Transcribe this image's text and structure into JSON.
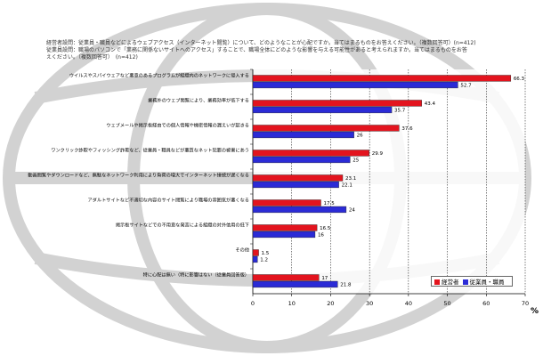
{
  "header": {
    "line1": "経営者設問：従業員・職員などによるウェブアクセス（インターネット閲覧）について、どのようなことが心配ですか。当てはまるものをお答えください。（複数回答可）(n=412)",
    "line2": "従業員設問：職場のパソコンで「業務に関係ないサイトへのアクセス」することで、職場全体にどのような影響を与える可能性があると考えられますか。当てはまるものをお答",
    "line3": "えください。（複数回答可）　(n=412)"
  },
  "unit": "%",
  "chart_data": {
    "type": "bar",
    "orientation": "horizontal",
    "categories": [
      "ウイルスやスパイウェアなど悪意のあるプログラムが組織内のネットワークに侵入する",
      "業務外のウェブ閲覧により、業務効率が低下する",
      "ウェブメールや掲示板経由での個人情報や機密情報の漏えいが起きる",
      "ワンクリック詐欺やフィッシング詐欺など、従業員・職員などが悪質なネット犯罪の被害にあう",
      "動画閲覧やダウンロードなど、無駄なネットワーク利用により負荷の増大でインターネット接続が遅くなる",
      "アダルトサイトなど不適切な内容のサイト閲覧により職場の雰囲気が悪くなる",
      "掲示板サイトなどでの不用意な発言による組織の対外信用の低下",
      "その他",
      "特に心配は無い（特に影響はない（従業員回答版）"
    ],
    "series": [
      {
        "name": "経営者",
        "values": [
          66.3,
          43.4,
          37.6,
          29.9,
          23.1,
          17.5,
          16.5,
          1.5,
          17
        ],
        "color": "#e3141e"
      },
      {
        "name": "従業員・職員",
        "values": [
          52.7,
          35.7,
          26,
          25,
          22.1,
          24,
          16,
          1.2,
          21.8
        ],
        "color": "#2b2bd6"
      }
    ],
    "xlim": [
      0,
      70
    ],
    "xticks": [
      0,
      10,
      20,
      30,
      40,
      50,
      60,
      70
    ],
    "legend_position": "bottom-right"
  }
}
